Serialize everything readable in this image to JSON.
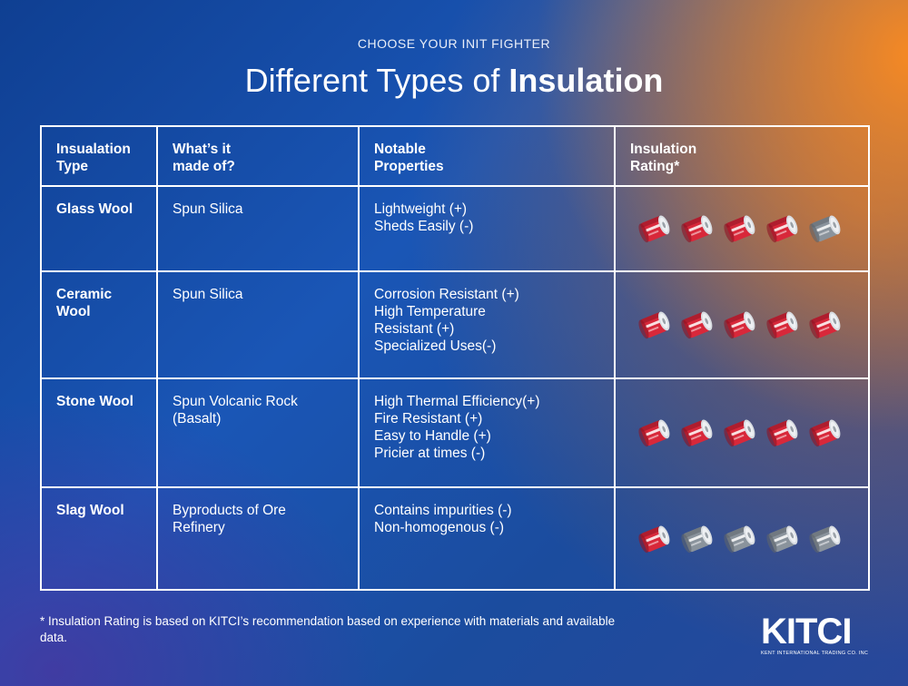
{
  "header": {
    "kicker": "CHOOSE YOUR INIT FIGHTER",
    "title_light": "Different Types of ",
    "title_bold": "Insulation"
  },
  "table": {
    "headers": [
      {
        "line1": "Insualation",
        "line2": "Type"
      },
      {
        "line1": "What’s it",
        "line2": "made of?"
      },
      {
        "line1": "Notable",
        "line2": "Properties"
      },
      {
        "line1": "Insulation",
        "line2": "Rating*"
      }
    ],
    "rows": [
      {
        "type": [
          "Glass Wool"
        ],
        "made_of": [
          "Spun Silica"
        ],
        "properties": [
          "Lightweight (+)",
          "Sheds Easily (-)"
        ],
        "rating": 4
      },
      {
        "type": [
          "Ceramic",
          "Wool"
        ],
        "made_of": [
          "Spun Silica"
        ],
        "properties": [
          "Corrosion Resistant (+)",
          "High Temperature",
          "Resistant (+)",
          "Specialized Uses(-)"
        ],
        "rating": 5
      },
      {
        "type": [
          "Stone Wool"
        ],
        "made_of": [
          "Spun Volcanic Rock",
          "(Basalt)"
        ],
        "properties": [
          "High Thermal Efficiency(+)",
          "Fire Resistant (+)",
          "Easy to Handle (+)",
          "Pricier at times (-)"
        ],
        "rating": 5
      },
      {
        "type": [
          "Slag Wool"
        ],
        "made_of": [
          "Byproducts of Ore",
          "Refinery"
        ],
        "properties": [
          "Contains impurities (-)",
          "Non-homogenous (-)"
        ],
        "rating": 1
      }
    ],
    "rating_max": 5
  },
  "footnote": "* Insulation Rating is based on KITCI’s recommendation based on experience with materials and available data.",
  "logo": {
    "mark": "KITCI",
    "tagline": "KENT INTERNATIONAL TRADING CO. INC"
  },
  "colors": {
    "roll_active": "#d8283a",
    "roll_inactive": "#8a939c"
  }
}
